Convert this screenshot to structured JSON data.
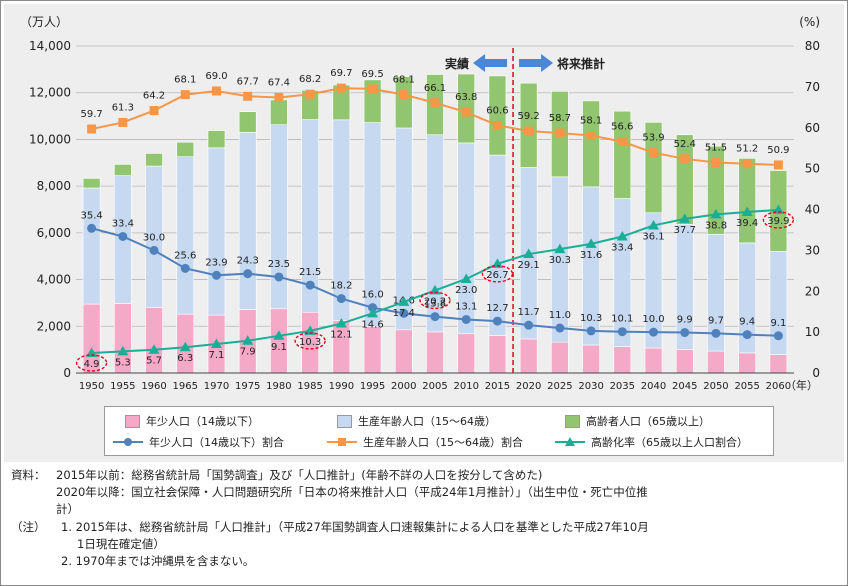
{
  "colors": {
    "young_bar": "#f4a9c6",
    "working_bar": "#c6d9f1",
    "elderly_bar": "#92c56f",
    "young_line": "#4f81bd",
    "working_line": "#f79646",
    "elderly_line": "#1aae97",
    "divider": "#e8001c",
    "arrow": "#4a87d8"
  },
  "chart_data": {
    "type": "bar",
    "stacked": true,
    "y_unit_left": "（万人）",
    "y_unit_right": "(%)",
    "x_unit": "（年）",
    "ylim_left": [
      0,
      14000
    ],
    "ylim_right": [
      0,
      80
    ],
    "yticks_left": [
      "0",
      "2,000",
      "4,000",
      "6,000",
      "8,000",
      "10,000",
      "12,000",
      "14,000"
    ],
    "yticks_right": [
      "0",
      "10",
      "20",
      "30",
      "40",
      "50",
      "60",
      "70",
      "80"
    ],
    "categories": [
      "1950",
      "1955",
      "1960",
      "1965",
      "1970",
      "1975",
      "1980",
      "1985",
      "1990",
      "1995",
      "2000",
      "2005",
      "2010",
      "2015",
      "2020",
      "2025",
      "2030",
      "2035",
      "2040",
      "2045",
      "2050",
      "2055",
      "2060"
    ],
    "bar_series": [
      {
        "name": "年少人口（14歳以下）",
        "values": [
          2950,
          2980,
          2810,
          2520,
          2480,
          2720,
          2750,
          2600,
          2250,
          2000,
          1850,
          1760,
          1680,
          1600,
          1460,
          1320,
          1200,
          1130,
          1070,
          1010,
          940,
          860,
          790
        ]
      },
      {
        "name": "生産年齢人口（15～64歳）",
        "values": [
          4970,
          5470,
          6050,
          6740,
          7160,
          7580,
          7880,
          8250,
          8590,
          8720,
          8640,
          8440,
          8170,
          7730,
          7340,
          7080,
          6770,
          6340,
          5790,
          5350,
          5000,
          4710,
          4420
        ]
      },
      {
        "name": "高齢者人口（65歳以上）",
        "values": [
          410,
          480,
          540,
          620,
          740,
          890,
          1060,
          1250,
          1490,
          1830,
          2200,
          2580,
          2950,
          3390,
          3610,
          3660,
          3680,
          3740,
          3870,
          3840,
          3770,
          3620,
          3460
        ]
      }
    ],
    "line_series": [
      {
        "name": "年少人口（14歳以下）割合",
        "values": [
          35.4,
          33.4,
          30.0,
          25.6,
          23.9,
          24.3,
          23.5,
          21.5,
          18.2,
          16.0,
          14.6,
          13.8,
          13.1,
          12.7,
          11.7,
          11.0,
          10.3,
          10.1,
          10.0,
          9.9,
          9.7,
          9.4,
          9.1
        ]
      },
      {
        "name": "生産年齢人口（15～64歳）割合",
        "values": [
          59.7,
          61.3,
          64.2,
          68.1,
          69.0,
          67.7,
          67.4,
          68.2,
          69.7,
          69.5,
          68.1,
          66.1,
          63.8,
          60.6,
          59.2,
          58.7,
          58.1,
          56.6,
          53.9,
          52.4,
          51.5,
          51.2,
          50.9
        ]
      },
      {
        "name": "高齢化率（65歳以上人口割合）",
        "values": [
          4.9,
          5.3,
          5.7,
          6.3,
          7.1,
          7.9,
          9.1,
          10.3,
          12.1,
          14.6,
          17.4,
          20.2,
          23.0,
          26.7,
          29.1,
          30.3,
          31.6,
          33.4,
          36.1,
          37.7,
          38.8,
          39.4,
          39.9
        ]
      }
    ],
    "highlighted": [
      {
        "series": 2,
        "index": 0
      },
      {
        "series": 2,
        "index": 7
      },
      {
        "series": 2,
        "index": 11
      },
      {
        "series": 2,
        "index": 13
      },
      {
        "series": 2,
        "index": 22
      }
    ],
    "annotations": {
      "actual": "実績",
      "projection": "将来推計"
    }
  },
  "legend": {
    "young_bar": "年少人口（14歳以下）",
    "working_bar": "生産年齢人口（15～64歳）",
    "elderly_bar": "高齢者人口（65歳以上）",
    "young_line": "年少人口（14歳以下）割合",
    "working_line": "生産年齢人口（15～64歳）割合",
    "elderly_line": "高齢化率（65歳以上人口割合）"
  },
  "notes": {
    "source_label": "資料：",
    "source_line1": "2015年以前：総務省統計局「国勢調査」及び「人口推計」(年齢不詳の人口を按分して含めた)",
    "source_line2": "2020年以降：国立社会保障・人口問題研究所「日本の将来推計人口（平成24年1月推計）」（出生中位・死亡中位推",
    "source_line3": "計）",
    "note_label": "（注）",
    "note1_line1": "1. 2015年は、総務省統計局「人口推計」（平成27年国勢調査人口速報集計による人口を基準とした平成27年10月",
    "note1_line2": "1日現在確定値）",
    "note2": "2. 1970年までは沖縄県を含まない。"
  }
}
